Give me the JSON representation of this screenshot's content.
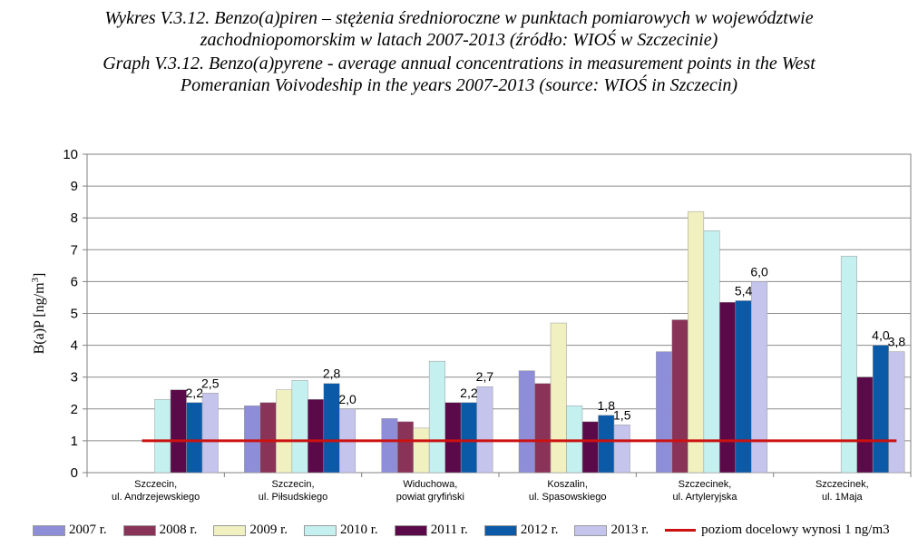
{
  "title": {
    "pl_line1": "Wykres V.3.12. Benzo(a)piren – stężenia średnioroczne w punktach pomiarowych w województwie",
    "pl_line2": "zachodniopomorskim w latach 2007-2013 (źródło: WIOŚ w Szczecinie)",
    "en_line1": "Graph V.3.12. Benzo(a)pyrene - average annual concentrations in measurement points in the West",
    "en_line2": "Pomeranian Voivodeship in the years 2007-2013 (source: WIOŚ in Szczecin)"
  },
  "chart_data": {
    "type": "bar",
    "ylabel": "B(a)P [ng/m3]",
    "ylim": [
      0,
      10
    ],
    "yticks": [
      "0",
      "1",
      "2",
      "3",
      "4",
      "5",
      "6",
      "7",
      "8",
      "9",
      "10"
    ],
    "grid": true,
    "legend_position": "bottom",
    "categories": [
      [
        "Szczecin,",
        "ul. Andrzejewskiego"
      ],
      [
        "Szczecin,",
        "ul. Piłsudskiego"
      ],
      [
        "Widuchowa,",
        "powiat gryfiński"
      ],
      [
        "Koszalin,",
        "ul. Spasowskiego"
      ],
      [
        "Szczecinek,",
        "ul. Artyleryjska"
      ],
      [
        "Szczecinek,",
        "ul. 1Maja"
      ]
    ],
    "series": [
      {
        "name": "2007 r.",
        "color": "#8e8ed8",
        "values": [
          null,
          2.1,
          1.7,
          3.2,
          3.8,
          null
        ]
      },
      {
        "name": "2008 r.",
        "color": "#8a3358",
        "values": [
          null,
          2.2,
          1.6,
          2.8,
          4.8,
          null
        ]
      },
      {
        "name": "2009 r.",
        "color": "#f0f0c0",
        "values": [
          null,
          2.6,
          1.4,
          4.7,
          8.2,
          null
        ]
      },
      {
        "name": "2010 r.",
        "color": "#c4f0f0",
        "values": [
          2.3,
          2.9,
          3.5,
          2.1,
          7.6,
          6.8
        ]
      },
      {
        "name": "2011 r.",
        "color": "#5a0a48",
        "values": [
          2.6,
          2.3,
          2.2,
          1.6,
          5.35,
          3.0
        ]
      },
      {
        "name": "2012 r.",
        "color": "#0a5aa8",
        "values": [
          2.2,
          2.8,
          2.2,
          1.8,
          5.4,
          4.0
        ]
      },
      {
        "name": "2013 r.",
        "color": "#c4c4ec",
        "values": [
          2.5,
          2.0,
          2.7,
          1.5,
          6.0,
          3.8
        ]
      }
    ],
    "data_labels": [
      {
        "category": 0,
        "series": 5,
        "text": "2,2"
      },
      {
        "category": 0,
        "series": 6,
        "text": "2,5"
      },
      {
        "category": 1,
        "series": 5,
        "text": "2,8"
      },
      {
        "category": 1,
        "series": 6,
        "text": "2,0"
      },
      {
        "category": 2,
        "series": 5,
        "text": "2,2"
      },
      {
        "category": 2,
        "series": 6,
        "text": "2,7"
      },
      {
        "category": 3,
        "series": 5,
        "text": "1,8"
      },
      {
        "category": 3,
        "series": 6,
        "text": "1,5"
      },
      {
        "category": 4,
        "series": 5,
        "text": "5,4"
      },
      {
        "category": 4,
        "series": 6,
        "text": "6,0"
      },
      {
        "category": 5,
        "series": 5,
        "text": "4,0"
      },
      {
        "category": 5,
        "series": 6,
        "text": "3,8"
      }
    ],
    "target_line": {
      "name": "poziom docelowy wynosi 1 ng/m3",
      "value": 1,
      "color": "#cc1111"
    }
  }
}
